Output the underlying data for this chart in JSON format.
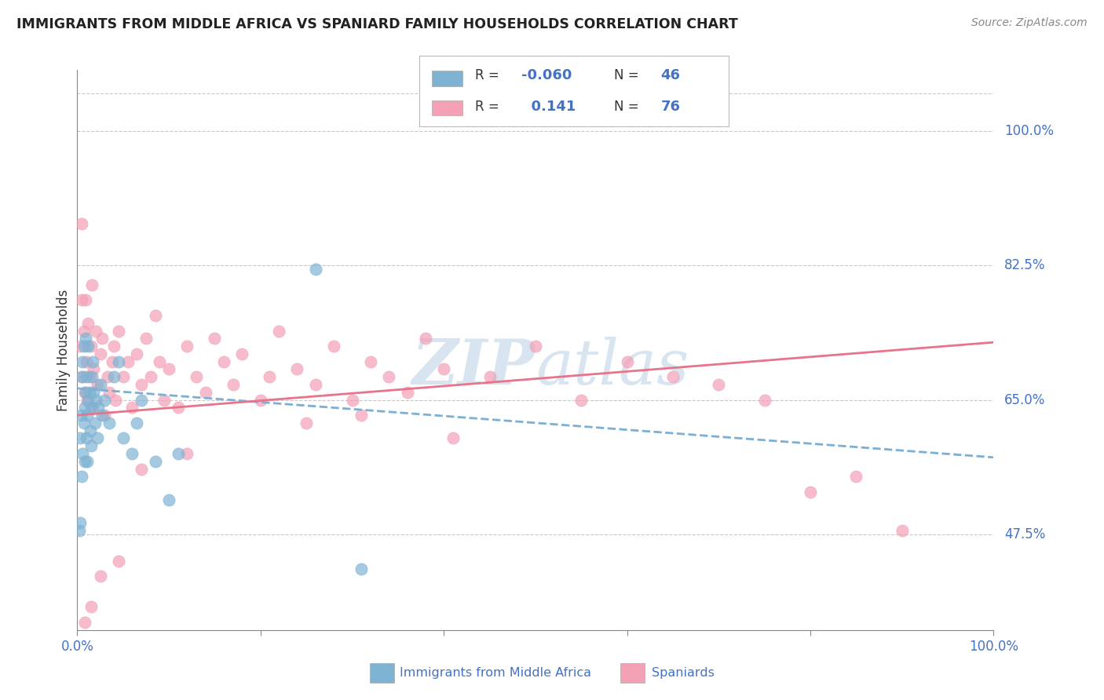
{
  "title": "IMMIGRANTS FROM MIDDLE AFRICA VS SPANIARD FAMILY HOUSEHOLDS CORRELATION CHART",
  "source": "Source: ZipAtlas.com",
  "ylabel": "Family Households",
  "ytick_vals": [
    47.5,
    65.0,
    82.5,
    100.0
  ],
  "ytick_labels": [
    "47.5%",
    "65.0%",
    "82.5%",
    "100.0%"
  ],
  "xtick_vals": [
    0.0,
    0.2,
    0.4,
    0.6,
    0.8,
    1.0
  ],
  "xtick_labels": [
    "0.0%",
    "",
    "",
    "",
    "",
    "100.0%"
  ],
  "xmin": 0.0,
  "xmax": 1.0,
  "ymin": 35.0,
  "ymax": 108.0,
  "color_blue": "#7fb3d3",
  "color_pink": "#f4a0b5",
  "color_blue_text": "#4472C4",
  "color_pink_line": "#e8738a",
  "color_blue_line": "#7bafd4",
  "grid_color": "#c8c8c8",
  "watermark_color": "#d8e4f0",
  "blue_scatter_x": [
    0.002,
    0.003,
    0.003,
    0.004,
    0.005,
    0.005,
    0.006,
    0.006,
    0.007,
    0.007,
    0.008,
    0.008,
    0.009,
    0.009,
    0.01,
    0.01,
    0.011,
    0.011,
    0.012,
    0.012,
    0.013,
    0.014,
    0.015,
    0.015,
    0.016,
    0.017,
    0.018,
    0.019,
    0.02,
    0.022,
    0.023,
    0.025,
    0.027,
    0.03,
    0.035,
    0.04,
    0.045,
    0.05,
    0.06,
    0.065,
    0.07,
    0.085,
    0.1,
    0.11,
    0.26,
    0.31
  ],
  "blue_scatter_y": [
    48.0,
    49.0,
    60.0,
    63.0,
    55.0,
    68.0,
    58.0,
    70.0,
    62.0,
    72.0,
    57.0,
    64.0,
    66.0,
    73.0,
    60.0,
    68.0,
    57.0,
    63.0,
    65.0,
    72.0,
    66.0,
    61.0,
    59.0,
    64.0,
    68.0,
    70.0,
    66.0,
    62.0,
    65.0,
    60.0,
    64.0,
    67.0,
    63.0,
    65.0,
    62.0,
    68.0,
    70.0,
    60.0,
    58.0,
    62.0,
    65.0,
    57.0,
    52.0,
    58.0,
    82.0,
    43.0
  ],
  "pink_scatter_x": [
    0.003,
    0.005,
    0.006,
    0.007,
    0.008,
    0.009,
    0.01,
    0.011,
    0.012,
    0.013,
    0.015,
    0.016,
    0.017,
    0.018,
    0.02,
    0.022,
    0.025,
    0.027,
    0.03,
    0.033,
    0.035,
    0.038,
    0.04,
    0.042,
    0.045,
    0.05,
    0.055,
    0.06,
    0.065,
    0.07,
    0.075,
    0.08,
    0.085,
    0.09,
    0.095,
    0.1,
    0.11,
    0.12,
    0.13,
    0.14,
    0.15,
    0.16,
    0.17,
    0.18,
    0.2,
    0.21,
    0.22,
    0.24,
    0.26,
    0.28,
    0.3,
    0.32,
    0.34,
    0.36,
    0.38,
    0.4,
    0.45,
    0.5,
    0.55,
    0.6,
    0.65,
    0.7,
    0.75,
    0.8,
    0.85,
    0.31,
    0.41,
    0.12,
    0.25,
    0.07,
    0.045,
    0.025,
    0.015,
    0.008,
    0.005,
    0.9
  ],
  "pink_scatter_y": [
    72.0,
    88.0,
    68.0,
    74.0,
    66.0,
    78.0,
    70.0,
    65.0,
    75.0,
    68.0,
    72.0,
    80.0,
    64.0,
    69.0,
    74.0,
    67.0,
    71.0,
    73.0,
    63.0,
    68.0,
    66.0,
    70.0,
    72.0,
    65.0,
    74.0,
    68.0,
    70.0,
    64.0,
    71.0,
    67.0,
    73.0,
    68.0,
    76.0,
    70.0,
    65.0,
    69.0,
    64.0,
    72.0,
    68.0,
    66.0,
    73.0,
    70.0,
    67.0,
    71.0,
    65.0,
    68.0,
    74.0,
    69.0,
    67.0,
    72.0,
    65.0,
    70.0,
    68.0,
    66.0,
    73.0,
    69.0,
    68.0,
    72.0,
    65.0,
    70.0,
    68.0,
    67.0,
    65.0,
    53.0,
    55.0,
    63.0,
    60.0,
    58.0,
    62.0,
    56.0,
    44.0,
    42.0,
    38.0,
    36.0,
    78.0,
    48.0
  ],
  "blue_trend_x0": 0.0,
  "blue_trend_x1": 1.0,
  "blue_trend_y0": 66.5,
  "blue_trend_y1": 57.5,
  "pink_trend_x0": 0.0,
  "pink_trend_x1": 1.0,
  "pink_trend_y0": 63.0,
  "pink_trend_y1": 72.5
}
